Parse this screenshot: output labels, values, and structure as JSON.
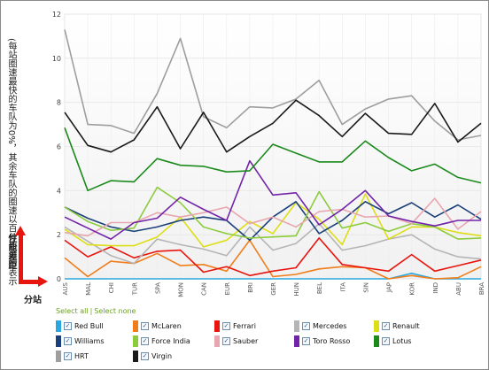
{
  "y_axis_label": "(每站圈速最快的车队为0%，其余车队的圈速以百分百进行表示",
  "y_axis_label_bold": "性能差距",
  "x_axis_label_bold": "分站",
  "controls": {
    "select_all": "Select all",
    "separator": "|",
    "select_none": "Select none"
  },
  "check_glyph": "✓",
  "chart_data": {
    "type": "line",
    "title": "",
    "xlabel": "分站",
    "ylabel": "(每站圈速最快的车队为0%，其余车队的圈速以百分百进行表示 性能差距",
    "ylim": [
      0,
      12
    ],
    "yticks": [
      0,
      2,
      4,
      6,
      8,
      10,
      12
    ],
    "grid": true,
    "legend_position": "bottom",
    "categories": [
      "AUS",
      "MAL",
      "CHI",
      "TUR",
      "SPA",
      "MON",
      "CAN",
      "EUR",
      "BRI",
      "GER",
      "HUN",
      "BEL",
      "ITA",
      "SIN",
      "JAP",
      "KOR",
      "IND",
      "ABU",
      "BRA"
    ],
    "series": [
      {
        "name": "Red Bull",
        "color": "#29a8e0",
        "values": [
          0,
          0,
          0,
          0,
          0,
          0,
          0,
          0,
          0,
          0,
          0,
          0,
          0,
          0,
          0,
          0.25,
          0,
          0,
          0
        ]
      },
      {
        "name": "McLaren",
        "color": "#f07d1a",
        "values": [
          0.95,
          0.1,
          0.8,
          0.7,
          1.15,
          0.6,
          0.65,
          0.35,
          1.75,
          0.1,
          0.2,
          0.45,
          0.55,
          0.5,
          0,
          0.15,
          0,
          0.05,
          0.55
        ]
      },
      {
        "name": "Ferrari",
        "color": "#e8150e",
        "values": [
          1.75,
          1.0,
          1.45,
          0.95,
          1.25,
          1.3,
          0.3,
          0.55,
          0.15,
          0.35,
          0.5,
          1.85,
          0.65,
          0.5,
          0.35,
          1.1,
          0.35,
          0.6,
          0.85
        ]
      },
      {
        "name": "Mercedes",
        "color": "#b5b5b5",
        "values": [
          2.35,
          1.7,
          1.05,
          0.7,
          1.8,
          1.55,
          1.35,
          1.05,
          2.35,
          1.3,
          1.6,
          2.5,
          1.3,
          1.5,
          1.8,
          2.0,
          1.35,
          1.0,
          0.9
        ]
      },
      {
        "name": "Renault",
        "color": "#dede16",
        "values": [
          2.25,
          1.55,
          1.5,
          1.5,
          1.9,
          2.8,
          1.45,
          1.75,
          2.6,
          2.05,
          3.45,
          2.7,
          1.55,
          3.85,
          1.8,
          2.35,
          2.35,
          2.1,
          1.95
        ]
      },
      {
        "name": "Williams",
        "color": "#1a3f7a",
        "values": [
          3.25,
          2.75,
          2.35,
          2.15,
          2.35,
          2.65,
          2.8,
          2.65,
          1.75,
          2.8,
          3.5,
          2.05,
          2.65,
          3.5,
          2.95,
          3.45,
          2.8,
          3.35,
          2.7
        ]
      },
      {
        "name": "Force India",
        "color": "#8ccc3c",
        "values": [
          3.25,
          2.6,
          2.2,
          2.3,
          4.15,
          3.45,
          2.35,
          2.05,
          1.85,
          1.9,
          1.95,
          3.95,
          2.3,
          2.55,
          2.15,
          2.5,
          2.35,
          1.8,
          1.85
        ]
      },
      {
        "name": "Sauber",
        "color": "#e8a6b0",
        "values": [
          2.1,
          1.95,
          2.55,
          2.55,
          3.0,
          2.8,
          3.0,
          3.25,
          2.5,
          2.8,
          2.35,
          3.05,
          3.15,
          2.8,
          2.85,
          2.5,
          3.65,
          2.25,
          3.05
        ]
      },
      {
        "name": "Toro Rosso",
        "color": "#7224a8",
        "values": [
          2.8,
          2.3,
          1.8,
          2.55,
          2.75,
          3.7,
          3.15,
          2.65,
          5.35,
          3.8,
          3.9,
          2.45,
          3.15,
          4.0,
          2.85,
          2.6,
          2.4,
          2.65,
          2.65
        ]
      },
      {
        "name": "Lotus",
        "color": "#1b8a1b",
        "values": [
          6.85,
          4.0,
          4.45,
          4.4,
          5.45,
          5.15,
          5.1,
          4.85,
          4.9,
          6.1,
          5.7,
          5.3,
          5.3,
          6.25,
          5.5,
          4.9,
          5.2,
          4.6,
          4.35
        ]
      },
      {
        "name": "HRT",
        "color": "#9e9e9e",
        "values": [
          11.3,
          7.0,
          6.95,
          6.6,
          8.4,
          10.9,
          7.35,
          6.85,
          7.8,
          7.75,
          8.15,
          9.0,
          7.0,
          7.7,
          8.15,
          8.3,
          7.15,
          6.3,
          6.5
        ]
      },
      {
        "name": "Virgin",
        "color": "#1a1a1a",
        "values": [
          7.55,
          6.05,
          5.75,
          6.3,
          7.8,
          5.9,
          7.55,
          5.75,
          6.45,
          7.05,
          8.1,
          7.4,
          6.45,
          7.5,
          6.6,
          6.55,
          7.95,
          6.2,
          7.05
        ]
      }
    ]
  }
}
